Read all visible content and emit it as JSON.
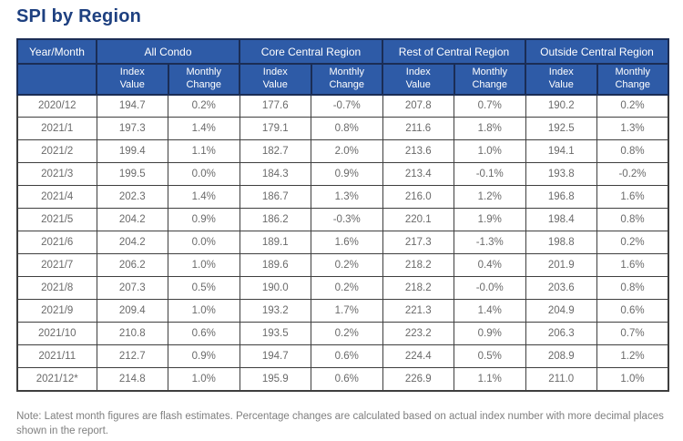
{
  "page": {
    "title": "SPI by Region",
    "note": "Note: Latest month figures are flash estimates. Percentage changes are calculated based on actual index number with more decimal places shown in the report."
  },
  "chart_data": {
    "type": "table",
    "title": "SPI by Region",
    "year_month_header": "Year/Month",
    "groups": [
      "All Condo",
      "Core Central Region",
      "Rest of Central Region",
      "Outside Central Region"
    ],
    "subcolumns": [
      "Index\nValue",
      "Monthly\nChange"
    ],
    "rows": [
      [
        "2020/12",
        "194.7",
        "0.2%",
        "177.6",
        "-0.7%",
        "207.8",
        "0.7%",
        "190.2",
        "0.2%"
      ],
      [
        "2021/1",
        "197.3",
        "1.4%",
        "179.1",
        "0.8%",
        "211.6",
        "1.8%",
        "192.5",
        "1.3%"
      ],
      [
        "2021/2",
        "199.4",
        "1.1%",
        "182.7",
        "2.0%",
        "213.6",
        "1.0%",
        "194.1",
        "0.8%"
      ],
      [
        "2021/3",
        "199.5",
        "0.0%",
        "184.3",
        "0.9%",
        "213.4",
        "-0.1%",
        "193.8",
        "-0.2%"
      ],
      [
        "2021/4",
        "202.3",
        "1.4%",
        "186.7",
        "1.3%",
        "216.0",
        "1.2%",
        "196.8",
        "1.6%"
      ],
      [
        "2021/5",
        "204.2",
        "0.9%",
        "186.2",
        "-0.3%",
        "220.1",
        "1.9%",
        "198.4",
        "0.8%"
      ],
      [
        "2021/6",
        "204.2",
        "0.0%",
        "189.1",
        "1.6%",
        "217.3",
        "-1.3%",
        "198.8",
        "0.2%"
      ],
      [
        "2021/7",
        "206.2",
        "1.0%",
        "189.6",
        "0.2%",
        "218.2",
        "0.4%",
        "201.9",
        "1.6%"
      ],
      [
        "2021/8",
        "207.3",
        "0.5%",
        "190.0",
        "0.2%",
        "218.2",
        "-0.0%",
        "203.6",
        "0.8%"
      ],
      [
        "2021/9",
        "209.4",
        "1.0%",
        "193.2",
        "1.7%",
        "221.3",
        "1.4%",
        "204.9",
        "0.6%"
      ],
      [
        "2021/10",
        "210.8",
        "0.6%",
        "193.5",
        "0.2%",
        "223.2",
        "0.9%",
        "206.3",
        "0.7%"
      ],
      [
        "2021/11",
        "212.7",
        "0.9%",
        "194.7",
        "0.6%",
        "224.4",
        "0.5%",
        "208.9",
        "1.2%"
      ],
      [
        "2021/12*",
        "214.8",
        "1.0%",
        "195.9",
        "0.6%",
        "226.9",
        "1.1%",
        "211.0",
        "1.0%"
      ]
    ],
    "footnote_marker": "*"
  },
  "colors": {
    "header_bg": "#2e5ba7",
    "header_border": "#1b2d55",
    "title_text": "#1e4080",
    "body_text": "#6a6a6a",
    "body_border": "#3f3f3f",
    "note_text": "#7f7f7f"
  }
}
